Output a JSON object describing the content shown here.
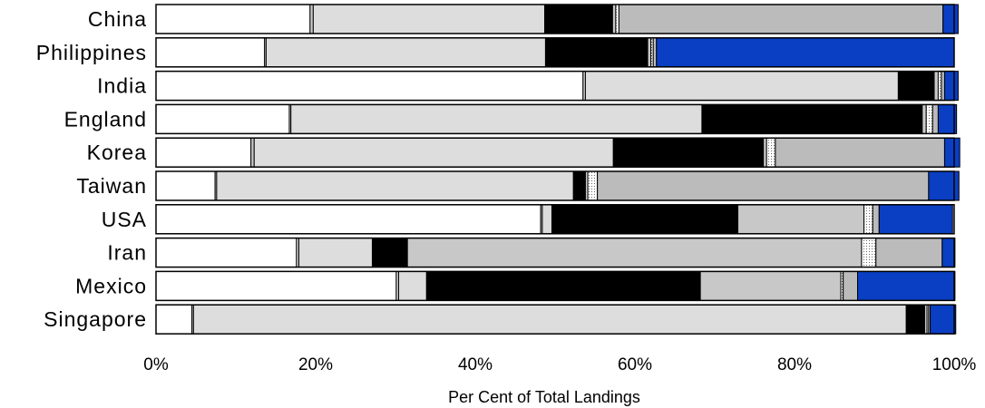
{
  "chart_data": {
    "type": "bar",
    "orientation": "horizontal",
    "stacked": true,
    "normalized": true,
    "title": "",
    "xlabel": "Per Cent of Total Landings",
    "ylabel": "",
    "xlim": [
      0,
      100
    ],
    "x_ticks": [
      "0%",
      "20%",
      "40%",
      "60%",
      "80%",
      "100%"
    ],
    "grid": false,
    "legend": "none",
    "categories": [
      "China",
      "Philippines",
      "India",
      "England",
      "Korea",
      "Taiwan",
      "USA",
      "Iran",
      "Mexico",
      "Singapore"
    ],
    "segment_colors": [
      "#ffffff",
      "#c8c8c8",
      "#dddddd",
      "#000000",
      "#c8c8c8",
      "#ffffff",
      "#bbbbbb",
      "#0a3fc4"
    ],
    "segment_patterns": [
      "solid",
      "solid",
      "solid",
      "solid",
      "solid",
      "dotted",
      "solid",
      "solid"
    ],
    "series": [
      {
        "values": [
          19.3,
          13.6,
          53.5,
          16.7,
          11.9,
          7.4,
          48.2,
          17.6,
          30.1,
          4.5
        ]
      },
      {
        "values": [
          0.4,
          0.2,
          0.3,
          0.2,
          0.4,
          0.2,
          0.2,
          0.3,
          0.3,
          0.2
        ]
      },
      {
        "values": [
          29.0,
          35.0,
          39.2,
          51.5,
          45.0,
          44.7,
          1.2,
          9.2,
          3.5,
          89.3
        ]
      },
      {
        "values": [
          8.5,
          12.8,
          4.5,
          27.6,
          18.8,
          1.5,
          23.3,
          4.4,
          34.3,
          2.3
        ]
      },
      {
        "values": [
          0.4,
          0.4,
          0.5,
          0.5,
          0.4,
          0.3,
          15.8,
          56.9,
          17.6,
          0.3
        ]
      },
      {
        "values": [
          0.4,
          0.3,
          0.4,
          0.8,
          1.1,
          1.2,
          1.1,
          1.8,
          0.3,
          0.2
        ]
      },
      {
        "values": [
          40.6,
          0.4,
          0.4,
          0.7,
          21.2,
          41.5,
          0.8,
          8.3,
          1.8,
          0.2
        ]
      },
      {
        "values": [
          1.9,
          37.3,
          1.7,
          2.3,
          1.9,
          3.8,
          9.2,
          1.6,
          12.2,
          3.2
        ]
      }
    ]
  }
}
